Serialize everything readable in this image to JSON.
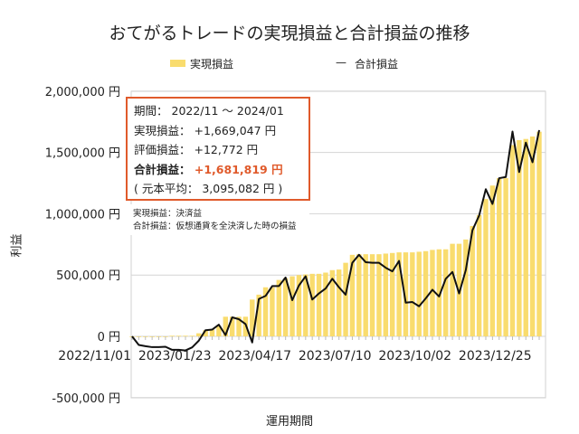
{
  "title": "おてがるトレードの実現損益と合計損益の推移",
  "info": {
    "period_label": "期間：",
    "period": "2022/11 ～ 2024/01",
    "realized_label": "実現損益：",
    "realized": "+1,669,047 円",
    "unrealized_label": "評価損益：",
    "unrealized": "+12,772 円",
    "total_label": "合計損益：",
    "total": "+1,681,819 円",
    "principal": "( 元本平均： 3,095,082 円 )"
  },
  "notes": [
    "実現損益：決済益",
    "合計損益：仮想通貨を全決済した時の損益"
  ],
  "colors": {
    "bar": "#f9dc6e",
    "line": "#111111",
    "accent": "#e05a2b"
  },
  "chart_data": {
    "type": "bar+line",
    "title": "おてがるトレードの実現損益と合計損益の推移",
    "xlabel": "運用期間",
    "ylabel": "利益",
    "ylim": [
      -500000,
      2000000
    ],
    "yticks": [
      -500000,
      0,
      500000,
      1000000,
      1500000,
      2000000
    ],
    "ytick_labels": [
      "-500,000 円",
      "0 円",
      "500,000 円",
      "1,000,000 円",
      "1,500,000 円",
      "2,000,000 円"
    ],
    "xtick_labels": [
      {
        "index": 0,
        "label": "2022/11/01"
      },
      {
        "index": 12,
        "label": "2023/01/23"
      },
      {
        "index": 24,
        "label": "2023/04/17"
      },
      {
        "index": 36,
        "label": "2023/07/10"
      },
      {
        "index": 48,
        "label": "2023/10/02"
      },
      {
        "index": 60,
        "label": "2023/12/25"
      }
    ],
    "grid": true,
    "legend": "top",
    "series": [
      {
        "name": "実現損益",
        "type": "bar",
        "values": [
          0,
          0,
          0,
          0,
          0,
          0,
          5000,
          5000,
          5000,
          5000,
          25000,
          50000,
          55000,
          85000,
          160000,
          160000,
          160000,
          160000,
          300000,
          340000,
          400000,
          400000,
          460000,
          475000,
          490000,
          500000,
          505000,
          510000,
          510000,
          520000,
          540000,
          545000,
          600000,
          665000,
          670000,
          670000,
          670000,
          670000,
          675000,
          680000,
          685000,
          685000,
          685000,
          690000,
          695000,
          705000,
          710000,
          710000,
          755000,
          755000,
          790000,
          900000,
          990000,
          1120000,
          1230000,
          1290000,
          1290000,
          1560000,
          1600000,
          1610000,
          1630000,
          1669047
        ]
      },
      {
        "name": "合計損益",
        "type": "line",
        "values": [
          0,
          -70000,
          -80000,
          -88000,
          -88000,
          -85000,
          -110000,
          -110000,
          -115000,
          -90000,
          -35000,
          50000,
          55000,
          95000,
          10000,
          155000,
          140000,
          100000,
          -50000,
          305000,
          330000,
          410000,
          410000,
          480000,
          295000,
          415000,
          490000,
          300000,
          350000,
          390000,
          470000,
          400000,
          340000,
          600000,
          665000,
          605000,
          600000,
          600000,
          560000,
          530000,
          615000,
          275000,
          280000,
          245000,
          310000,
          380000,
          325000,
          470000,
          525000,
          350000,
          540000,
          865000,
          985000,
          1200000,
          1080000,
          1290000,
          1300000,
          1670000,
          1340000,
          1580000,
          1420000,
          1681819
        ]
      }
    ]
  }
}
